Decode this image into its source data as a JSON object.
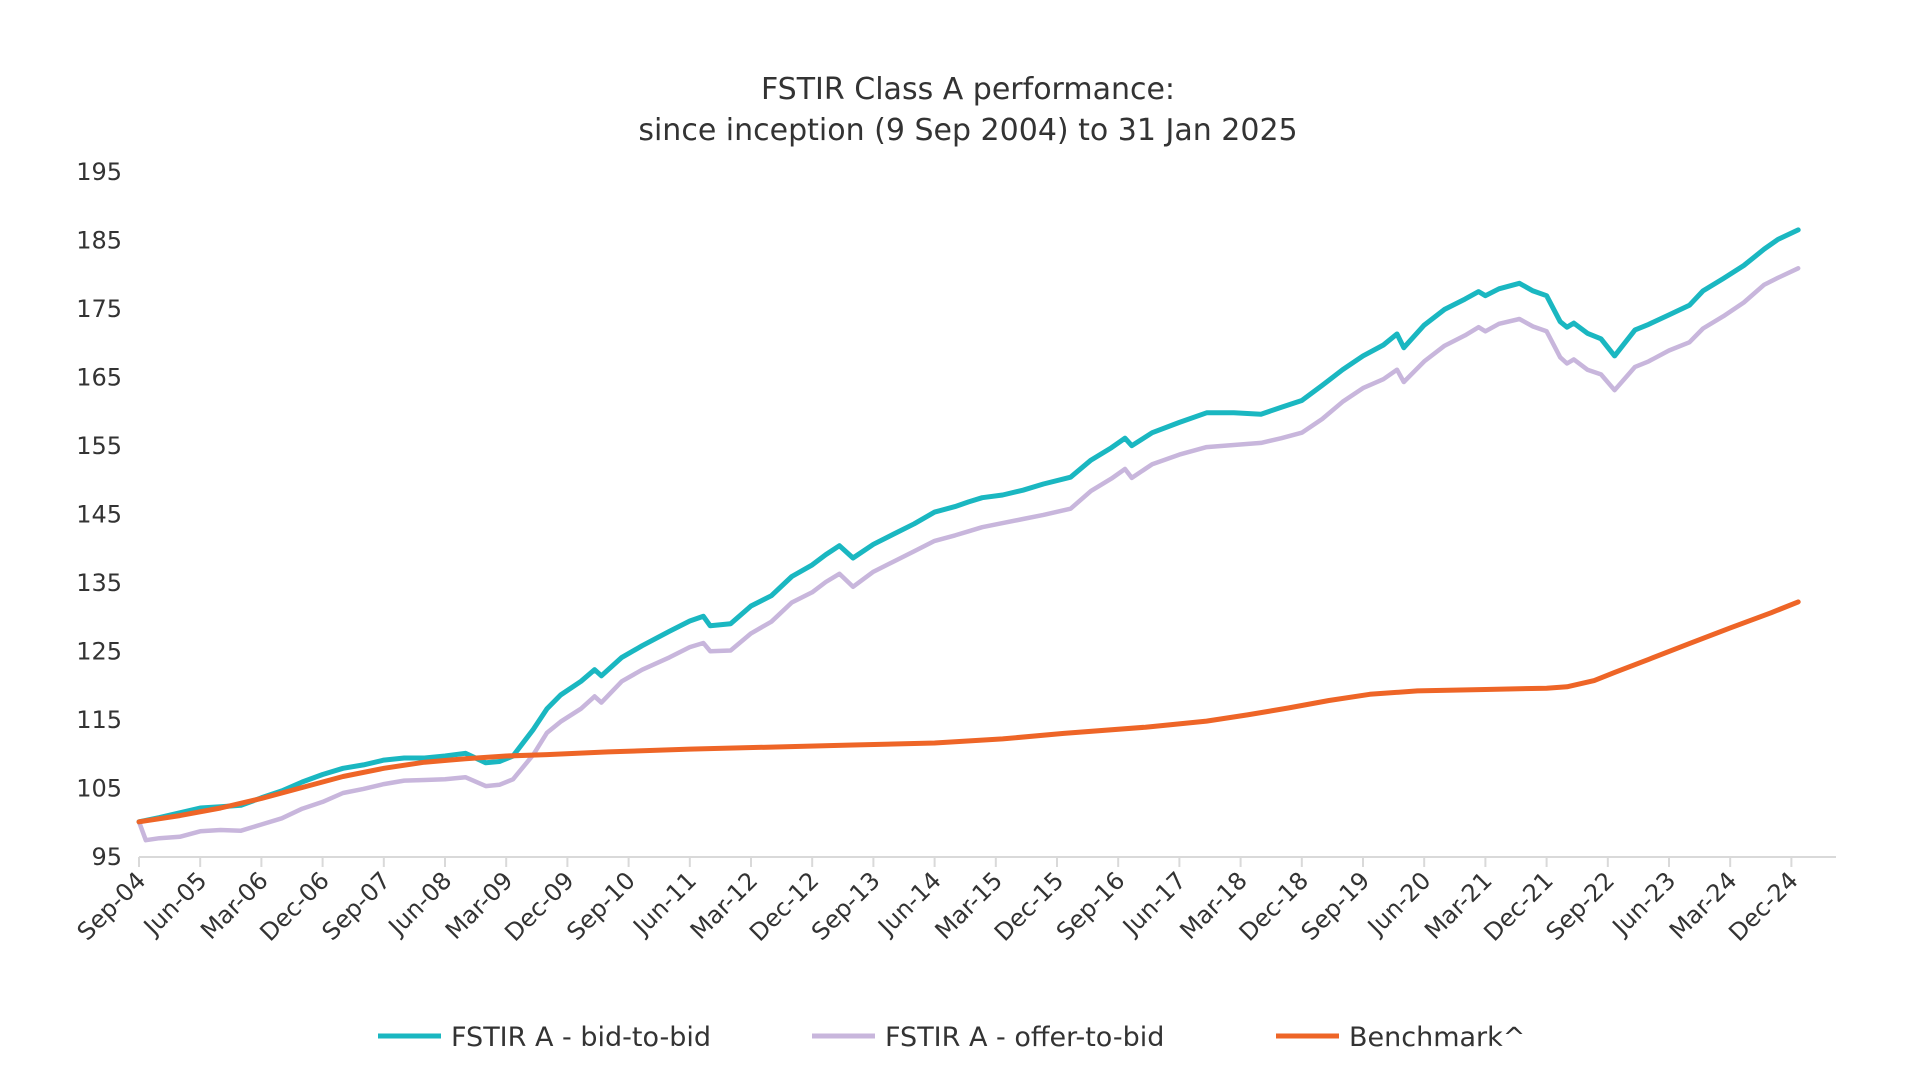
{
  "chart_data": {
    "type": "line",
    "title": "FSTIR Class A performance:",
    "subtitle": "since inception (9 Sep 2004) to 31 Jan 2025",
    "xlabel": "",
    "ylabel": "",
    "ylim": [
      95,
      195
    ],
    "yticks": [
      95,
      105,
      115,
      125,
      135,
      145,
      155,
      165,
      175,
      185,
      195
    ],
    "x_range_months": [
      "2004-09",
      "2025-01"
    ],
    "xtick_labels": [
      "Sep-04",
      "Jun-05",
      "Mar-06",
      "Dec-06",
      "Sep-07",
      "Jun-08",
      "Mar-09",
      "Dec-09",
      "Sep-10",
      "Jun-11",
      "Mar-12",
      "Dec-12",
      "Sep-13",
      "Jun-14",
      "Mar-15",
      "Dec-15",
      "Sep-16",
      "Jun-17",
      "Mar-18",
      "Dec-18",
      "Sep-19",
      "Jun-20",
      "Mar-21",
      "Dec-21",
      "Sep-22",
      "Jun-23",
      "Mar-24",
      "Dec-24"
    ],
    "grid": false,
    "legend_position": "bottom",
    "series": [
      {
        "name": "FSTIR A - bid-to-bid",
        "color": "#1ab7c1",
        "points": [
          [
            "2004-09",
            100.0
          ],
          [
            "2004-12",
            100.6
          ],
          [
            "2005-03",
            101.3
          ],
          [
            "2005-06",
            102.0
          ],
          [
            "2005-09",
            102.2
          ],
          [
            "2005-12",
            102.4
          ],
          [
            "2006-03",
            103.5
          ],
          [
            "2006-06",
            104.5
          ],
          [
            "2006-09",
            105.8
          ],
          [
            "2006-12",
            106.9
          ],
          [
            "2007-03",
            107.8
          ],
          [
            "2007-06",
            108.3
          ],
          [
            "2007-09",
            109.0
          ],
          [
            "2007-12",
            109.3
          ],
          [
            "2008-03",
            109.3
          ],
          [
            "2008-06",
            109.6
          ],
          [
            "2008-09",
            110.0
          ],
          [
            "2008-12",
            108.6
          ],
          [
            "2009-02",
            108.8
          ],
          [
            "2009-04",
            109.6
          ],
          [
            "2009-07",
            113.5
          ],
          [
            "2009-09",
            116.5
          ],
          [
            "2009-11",
            118.5
          ],
          [
            "2010-02",
            120.5
          ],
          [
            "2010-04",
            122.2
          ],
          [
            "2010-05",
            121.3
          ],
          [
            "2010-08",
            124.0
          ],
          [
            "2010-11",
            125.7
          ],
          [
            "2011-03",
            127.8
          ],
          [
            "2011-06",
            129.3
          ],
          [
            "2011-08",
            130.0
          ],
          [
            "2011-09",
            128.6
          ],
          [
            "2011-12",
            128.9
          ],
          [
            "2012-03",
            131.5
          ],
          [
            "2012-06",
            133.0
          ],
          [
            "2012-09",
            135.8
          ],
          [
            "2012-12",
            137.5
          ],
          [
            "2013-02",
            139.0
          ],
          [
            "2013-04",
            140.3
          ],
          [
            "2013-06",
            138.5
          ],
          [
            "2013-09",
            140.5
          ],
          [
            "2013-12",
            142.0
          ],
          [
            "2014-03",
            143.5
          ],
          [
            "2014-06",
            145.2
          ],
          [
            "2014-09",
            146.0
          ],
          [
            "2014-11",
            146.7
          ],
          [
            "2015-01",
            147.3
          ],
          [
            "2015-04",
            147.7
          ],
          [
            "2015-07",
            148.4
          ],
          [
            "2015-10",
            149.3
          ],
          [
            "2016-02",
            150.3
          ],
          [
            "2016-05",
            152.8
          ],
          [
            "2016-08",
            154.6
          ],
          [
            "2016-10",
            156.0
          ],
          [
            "2016-11",
            154.9
          ],
          [
            "2017-02",
            156.8
          ],
          [
            "2017-06",
            158.3
          ],
          [
            "2017-10",
            159.7
          ],
          [
            "2018-02",
            159.7
          ],
          [
            "2018-06",
            159.5
          ],
          [
            "2018-09",
            160.5
          ],
          [
            "2018-12",
            161.5
          ],
          [
            "2019-03",
            163.7
          ],
          [
            "2019-06",
            166.0
          ],
          [
            "2019-09",
            168.0
          ],
          [
            "2019-12",
            169.6
          ],
          [
            "2020-02",
            171.2
          ],
          [
            "2020-03",
            169.2
          ],
          [
            "2020-06",
            172.5
          ],
          [
            "2020-09",
            174.8
          ],
          [
            "2020-12",
            176.3
          ],
          [
            "2021-02",
            177.4
          ],
          [
            "2021-03",
            176.8
          ],
          [
            "2021-05",
            177.8
          ],
          [
            "2021-08",
            178.6
          ],
          [
            "2021-10",
            177.5
          ],
          [
            "2021-12",
            176.8
          ],
          [
            "2022-02",
            173.0
          ],
          [
            "2022-03",
            172.2
          ],
          [
            "2022-04",
            172.8
          ],
          [
            "2022-06",
            171.3
          ],
          [
            "2022-08",
            170.5
          ],
          [
            "2022-10",
            168.0
          ],
          [
            "2023-01",
            171.8
          ],
          [
            "2023-03",
            172.6
          ],
          [
            "2023-06",
            174.0
          ],
          [
            "2023-09",
            175.4
          ],
          [
            "2023-11",
            177.5
          ],
          [
            "2024-02",
            179.3
          ],
          [
            "2024-05",
            181.2
          ],
          [
            "2024-08",
            183.6
          ],
          [
            "2024-10",
            185.0
          ],
          [
            "2025-01",
            186.4
          ]
        ]
      },
      {
        "name": "FSTIR A - offer-to-bid",
        "color": "#c8b6dc",
        "points": [
          [
            "2004-09",
            100.0
          ],
          [
            "2004-10",
            97.3
          ],
          [
            "2004-12",
            97.6
          ],
          [
            "2005-03",
            97.8
          ],
          [
            "2005-06",
            98.6
          ],
          [
            "2005-09",
            98.8
          ],
          [
            "2005-12",
            98.7
          ],
          [
            "2006-03",
            99.6
          ],
          [
            "2006-06",
            100.5
          ],
          [
            "2006-09",
            101.9
          ],
          [
            "2006-12",
            102.9
          ],
          [
            "2007-03",
            104.2
          ],
          [
            "2007-06",
            104.8
          ],
          [
            "2007-09",
            105.5
          ],
          [
            "2007-12",
            106.0
          ],
          [
            "2008-03",
            106.1
          ],
          [
            "2008-06",
            106.2
          ],
          [
            "2008-09",
            106.5
          ],
          [
            "2008-12",
            105.2
          ],
          [
            "2009-02",
            105.4
          ],
          [
            "2009-04",
            106.2
          ],
          [
            "2009-07",
            109.8
          ],
          [
            "2009-09",
            113.0
          ],
          [
            "2009-11",
            114.6
          ],
          [
            "2010-02",
            116.5
          ],
          [
            "2010-04",
            118.3
          ],
          [
            "2010-05",
            117.4
          ],
          [
            "2010-08",
            120.5
          ],
          [
            "2010-11",
            122.2
          ],
          [
            "2011-03",
            124.0
          ],
          [
            "2011-06",
            125.5
          ],
          [
            "2011-08",
            126.1
          ],
          [
            "2011-09",
            124.9
          ],
          [
            "2011-12",
            125.0
          ],
          [
            "2012-03",
            127.5
          ],
          [
            "2012-06",
            129.2
          ],
          [
            "2012-09",
            132.0
          ],
          [
            "2012-12",
            133.5
          ],
          [
            "2013-02",
            135.0
          ],
          [
            "2013-04",
            136.2
          ],
          [
            "2013-06",
            134.3
          ],
          [
            "2013-09",
            136.5
          ],
          [
            "2013-12",
            138.0
          ],
          [
            "2014-03",
            139.5
          ],
          [
            "2014-06",
            141.0
          ],
          [
            "2014-09",
            141.8
          ],
          [
            "2014-11",
            142.4
          ],
          [
            "2015-01",
            143.0
          ],
          [
            "2015-04",
            143.6
          ],
          [
            "2015-07",
            144.2
          ],
          [
            "2015-10",
            144.8
          ],
          [
            "2016-02",
            145.7
          ],
          [
            "2016-05",
            148.3
          ],
          [
            "2016-08",
            150.1
          ],
          [
            "2016-10",
            151.5
          ],
          [
            "2016-11",
            150.2
          ],
          [
            "2017-02",
            152.2
          ],
          [
            "2017-06",
            153.6
          ],
          [
            "2017-10",
            154.7
          ],
          [
            "2018-02",
            155.0
          ],
          [
            "2018-06",
            155.3
          ],
          [
            "2018-09",
            156.0
          ],
          [
            "2018-12",
            156.8
          ],
          [
            "2019-03",
            158.8
          ],
          [
            "2019-06",
            161.3
          ],
          [
            "2019-09",
            163.3
          ],
          [
            "2019-12",
            164.6
          ],
          [
            "2020-02",
            166.0
          ],
          [
            "2020-03",
            164.2
          ],
          [
            "2020-06",
            167.2
          ],
          [
            "2020-09",
            169.5
          ],
          [
            "2020-12",
            171.0
          ],
          [
            "2021-02",
            172.2
          ],
          [
            "2021-03",
            171.6
          ],
          [
            "2021-05",
            172.7
          ],
          [
            "2021-08",
            173.4
          ],
          [
            "2021-10",
            172.3
          ],
          [
            "2021-12",
            171.6
          ],
          [
            "2022-02",
            167.8
          ],
          [
            "2022-03",
            166.9
          ],
          [
            "2022-04",
            167.5
          ],
          [
            "2022-06",
            166.0
          ],
          [
            "2022-08",
            165.3
          ],
          [
            "2022-10",
            163.0
          ],
          [
            "2023-01",
            166.4
          ],
          [
            "2023-03",
            167.2
          ],
          [
            "2023-06",
            168.8
          ],
          [
            "2023-09",
            170.0
          ],
          [
            "2023-11",
            172.0
          ],
          [
            "2024-02",
            173.8
          ],
          [
            "2024-05",
            175.8
          ],
          [
            "2024-08",
            178.4
          ],
          [
            "2024-10",
            179.4
          ],
          [
            "2025-01",
            180.8
          ]
        ]
      },
      {
        "name": "Benchmark^",
        "color": "#ee6527",
        "points": [
          [
            "2004-09",
            100.0
          ],
          [
            "2005-03",
            100.9
          ],
          [
            "2005-09",
            102.0
          ],
          [
            "2006-03",
            103.4
          ],
          [
            "2006-09",
            105.0
          ],
          [
            "2007-03",
            106.6
          ],
          [
            "2007-09",
            107.8
          ],
          [
            "2008-03",
            108.7
          ],
          [
            "2008-09",
            109.2
          ],
          [
            "2009-03",
            109.6
          ],
          [
            "2009-09",
            109.8
          ],
          [
            "2010-06",
            110.2
          ],
          [
            "2011-06",
            110.6
          ],
          [
            "2012-06",
            110.9
          ],
          [
            "2013-06",
            111.2
          ],
          [
            "2014-06",
            111.5
          ],
          [
            "2015-04",
            112.1
          ],
          [
            "2016-01",
            112.9
          ],
          [
            "2017-01",
            113.8
          ],
          [
            "2017-10",
            114.7
          ],
          [
            "2018-04",
            115.6
          ],
          [
            "2018-10",
            116.6
          ],
          [
            "2019-04",
            117.7
          ],
          [
            "2019-10",
            118.6
          ],
          [
            "2020-05",
            119.1
          ],
          [
            "2021-03",
            119.3
          ],
          [
            "2021-12",
            119.5
          ],
          [
            "2022-03",
            119.7
          ],
          [
            "2022-07",
            120.6
          ],
          [
            "2022-10",
            121.8
          ],
          [
            "2023-03",
            123.7
          ],
          [
            "2023-09",
            126.0
          ],
          [
            "2024-03",
            128.3
          ],
          [
            "2024-09",
            130.5
          ],
          [
            "2025-01",
            132.1
          ]
        ]
      }
    ]
  }
}
